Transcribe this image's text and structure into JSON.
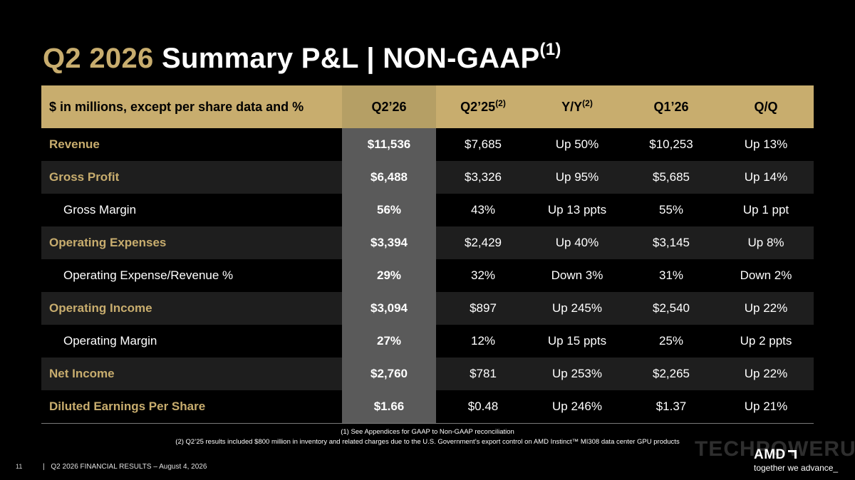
{
  "title": {
    "quarter": "Q2 2026",
    "text": "Summary P&L  |  NON-GAAP",
    "sup": "(1)"
  },
  "table": {
    "headers": [
      {
        "text": "$ in millions, except per share data and %",
        "sup": ""
      },
      {
        "text": "Q2’26",
        "sup": ""
      },
      {
        "text": "Q2’25",
        "sup": "(2)"
      },
      {
        "text": "Y/Y",
        "sup": "(2)"
      },
      {
        "text": "Q1’26",
        "sup": ""
      },
      {
        "text": "Q/Q",
        "sup": ""
      }
    ],
    "rows": [
      {
        "label": "Revenue",
        "cells": [
          "$11,536",
          "$7,685",
          "Up 50%",
          "$10,253",
          "Up 13%"
        ]
      },
      {
        "label": "Gross Profit",
        "cells": [
          "$6,488",
          "$3,326",
          "Up 95%",
          "$5,685",
          "Up 14%"
        ]
      },
      {
        "label": "Gross Margin",
        "cells": [
          "56%",
          "43%",
          "Up 13 ppts",
          "55%",
          "Up 1 ppt"
        ]
      },
      {
        "label": "Operating Expenses",
        "cells": [
          "$3,394",
          "$2,429",
          "Up 40%",
          "$3,145",
          "Up 8%"
        ]
      },
      {
        "label": "Operating Expense/Revenue %",
        "cells": [
          "29%",
          "32%",
          "Down 3%",
          "31%",
          "Down 2%"
        ]
      },
      {
        "label": "Operating Income",
        "cells": [
          "$3,094",
          "$897",
          "Up 245%",
          "$2,540",
          "Up 22%"
        ]
      },
      {
        "label": "Operating Margin",
        "cells": [
          "27%",
          "12%",
          "Up 15 ppts",
          "25%",
          "Up 2 ppts"
        ]
      },
      {
        "label": "Net Income",
        "cells": [
          "$2,760",
          "$781",
          "Up 253%",
          "$2,265",
          "Up 22%"
        ]
      },
      {
        "label": "Diluted Earnings Per Share",
        "cells": [
          "$1.66",
          "$0.48",
          "Up 246%",
          "$1.37",
          "Up 21%"
        ]
      }
    ]
  },
  "footnotes": [
    "(1) See Appendices for GAAP to Non-GAAP reconciliation",
    "(2) Q2’25 results included $800 million in inventory and related charges due to the U.S. Government’s export control on AMD Instinct™ MI308 data center GPU products"
  ],
  "footer": {
    "page_number": "11",
    "separator": "|",
    "text": "Q2 2026 FINANCIAL RESULTS – August 4, 2026"
  },
  "watermark": "TECHPOWERUP",
  "logo": {
    "brand": "AMD",
    "tagline": "together we advance_"
  },
  "colors": {
    "background": "#000000",
    "gold": "#c8ad6e",
    "highlight_column": "#5a5a5a",
    "alt_row": "#1e1e1e"
  }
}
